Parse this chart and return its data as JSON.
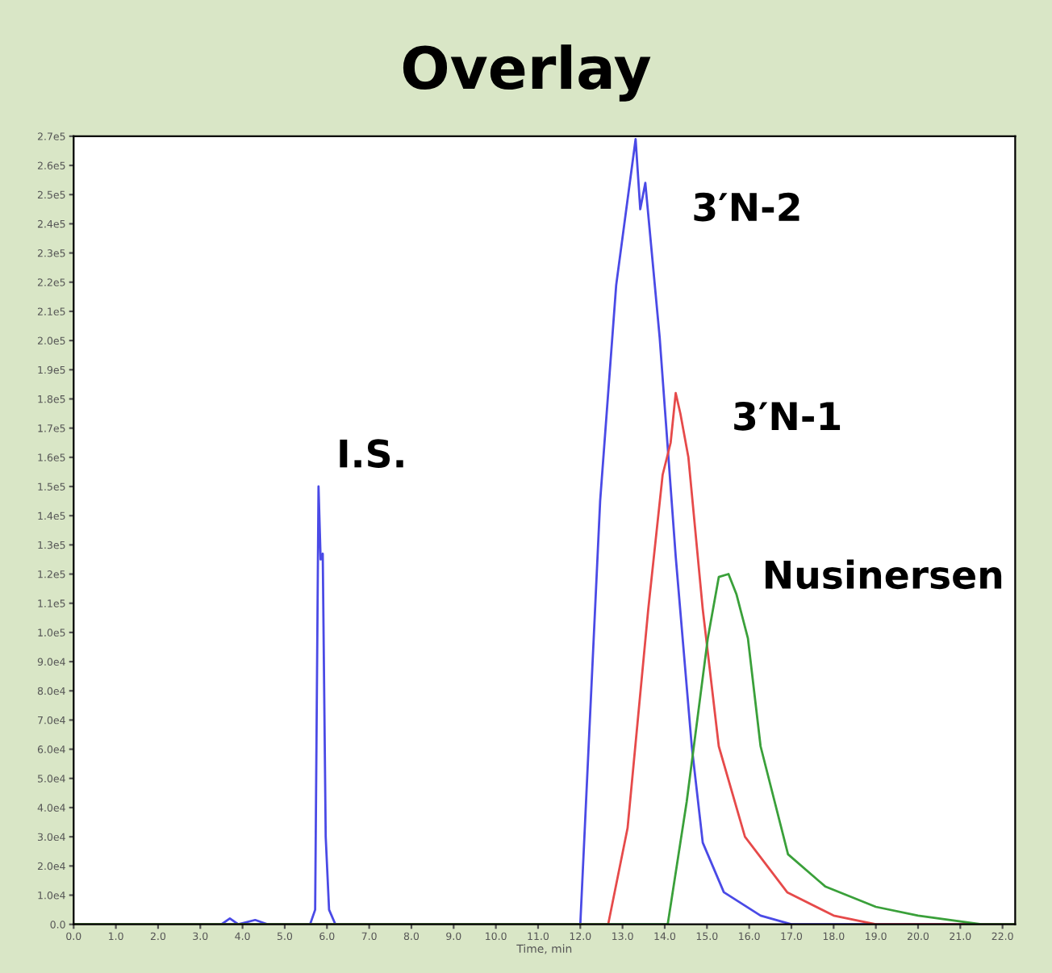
{
  "chart_data": {
    "type": "line",
    "title": "Overlay",
    "xlabel": "Time, min",
    "xlim": [
      0,
      22.3
    ],
    "ylim": [
      0,
      270000
    ],
    "xticks": [
      {
        "value": 0,
        "label": "0.0"
      },
      {
        "value": 1,
        "label": "1.0"
      },
      {
        "value": 2,
        "label": "2.0"
      },
      {
        "value": 3,
        "label": "3.0"
      },
      {
        "value": 4,
        "label": "4.0"
      },
      {
        "value": 5,
        "label": "5.0"
      },
      {
        "value": 6,
        "label": "6.0"
      },
      {
        "value": 7,
        "label": "7.0"
      },
      {
        "value": 8,
        "label": "8.0"
      },
      {
        "value": 9,
        "label": "9.0"
      },
      {
        "value": 10,
        "label": "10.0"
      },
      {
        "value": 11,
        "label": "11.0"
      },
      {
        "value": 12,
        "label": "12.0"
      },
      {
        "value": 13,
        "label": "13.0"
      },
      {
        "value": 14,
        "label": "14.0"
      },
      {
        "value": 15,
        "label": "15.0"
      },
      {
        "value": 16,
        "label": "16.0"
      },
      {
        "value": 17,
        "label": "17.0"
      },
      {
        "value": 18,
        "label": "18.0"
      },
      {
        "value": 19,
        "label": "19.0"
      },
      {
        "value": 20,
        "label": "20.0"
      },
      {
        "value": 21,
        "label": "21.0"
      },
      {
        "value": 22,
        "label": "22.0"
      }
    ],
    "yticks": [
      {
        "value": 0,
        "label": "0.0"
      },
      {
        "value": 10000,
        "label": "1.0e4"
      },
      {
        "value": 20000,
        "label": "2.0e4"
      },
      {
        "value": 30000,
        "label": "3.0e4"
      },
      {
        "value": 40000,
        "label": "4.0e4"
      },
      {
        "value": 50000,
        "label": "5.0e4"
      },
      {
        "value": 60000,
        "label": "6.0e4"
      },
      {
        "value": 70000,
        "label": "7.0e4"
      },
      {
        "value": 80000,
        "label": "8.0e4"
      },
      {
        "value": 90000,
        "label": "9.0e4"
      },
      {
        "value": 100000,
        "label": "1.0e5"
      },
      {
        "value": 110000,
        "label": "1.1e5"
      },
      {
        "value": 120000,
        "label": "1.2e5"
      },
      {
        "value": 130000,
        "label": "1.3e5"
      },
      {
        "value": 140000,
        "label": "1.4e5"
      },
      {
        "value": 150000,
        "label": "1.5e5"
      },
      {
        "value": 160000,
        "label": "1.6e5"
      },
      {
        "value": 170000,
        "label": "1.7e5"
      },
      {
        "value": 180000,
        "label": "1.8e5"
      },
      {
        "value": 190000,
        "label": "1.9e5"
      },
      {
        "value": 200000,
        "label": "2.0e5"
      },
      {
        "value": 210000,
        "label": "2.1e5"
      },
      {
        "value": 220000,
        "label": "2.2e5"
      },
      {
        "value": 230000,
        "label": "2.3e5"
      },
      {
        "value": 240000,
        "label": "2.4e5"
      },
      {
        "value": 250000,
        "label": "2.5e5"
      },
      {
        "value": 260000,
        "label": "2.6e5"
      },
      {
        "value": 270000,
        "label": "2.7e5"
      }
    ],
    "grid": false,
    "legend": false,
    "series": [
      {
        "color": "#4a4ae6",
        "x": [
          0,
          3.5,
          3.7,
          3.9,
          4.3,
          4.6,
          5.6,
          5.72,
          5.8,
          5.85,
          5.9,
          5.97,
          6.05,
          6.2,
          12.0,
          12.47,
          12.85,
          13.31,
          13.42,
          13.54,
          13.88,
          14.26,
          14.64,
          14.9,
          15.4,
          16.27,
          17.0,
          22.3
        ],
        "values": [
          0,
          0,
          2000,
          0,
          1500,
          0,
          0,
          5000,
          150000,
          125000,
          127000,
          30000,
          5000,
          0,
          0,
          145000,
          219000,
          269000,
          245000,
          254000,
          201000,
          126000,
          61000,
          28000,
          11000,
          3000,
          0,
          0
        ]
      },
      {
        "color": "#e64a4a",
        "x": [
          0,
          12.66,
          13.12,
          13.61,
          13.95,
          14.14,
          14.26,
          14.37,
          14.56,
          14.9,
          15.28,
          15.9,
          16.9,
          18.0,
          19.0,
          22.3
        ],
        "values": [
          0,
          0,
          33000,
          108000,
          154000,
          165000,
          182000,
          175000,
          160000,
          108000,
          61000,
          30000,
          11000,
          3000,
          0,
          0
        ]
      },
      {
        "color": "#3aa03a",
        "x": [
          0,
          14.07,
          14.52,
          15.02,
          15.28,
          15.51,
          15.7,
          15.97,
          16.27,
          16.92,
          17.8,
          19.0,
          20.0,
          21.5,
          22.3
        ],
        "values": [
          0,
          0,
          42000,
          98000,
          119000,
          120000,
          113000,
          98000,
          61000,
          24000,
          13000,
          6000,
          3000,
          0,
          0
        ]
      }
    ],
    "annotations": [
      {
        "text": "I.S.",
        "x": 5.8,
        "y": 150000
      },
      {
        "text": "3′N-2",
        "x": 13.31,
        "y": 269000
      },
      {
        "text": "3′N-1",
        "x": 14.26,
        "y": 182000
      },
      {
        "text": "Nusinersen",
        "x": 15.51,
        "y": 120000
      }
    ]
  }
}
